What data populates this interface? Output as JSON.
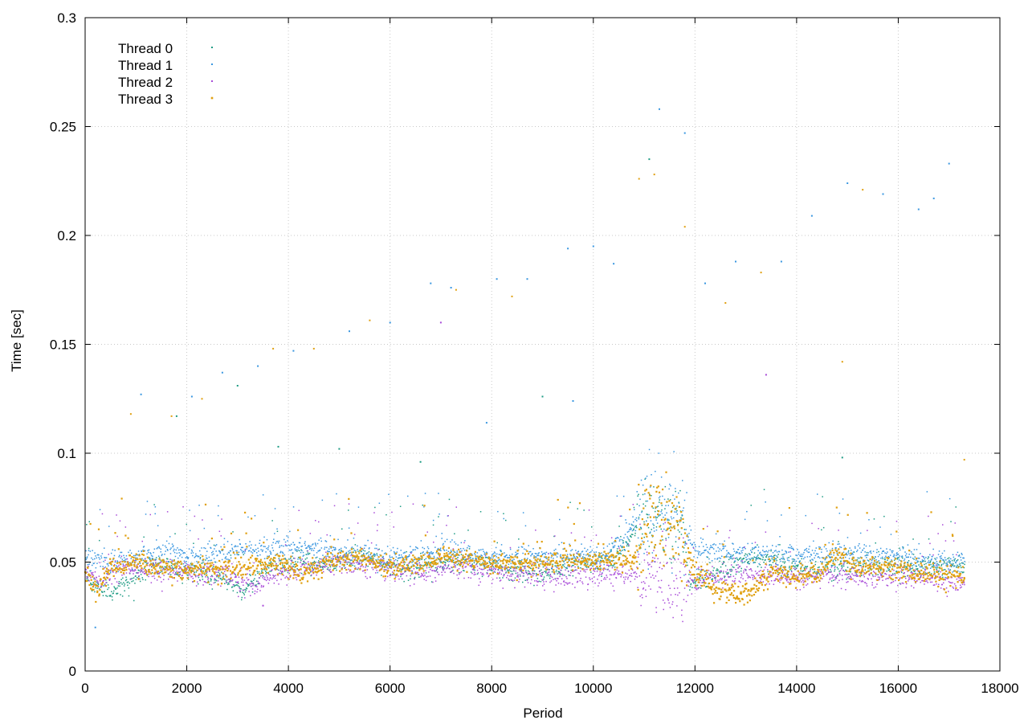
{
  "chart_data": {
    "type": "scatter",
    "title": "",
    "xlabel": "Period",
    "ylabel": "Time [sec]",
    "xlim": [
      0,
      18000
    ],
    "ylim": [
      0,
      0.3
    ],
    "xticks": [
      0,
      2000,
      4000,
      6000,
      8000,
      10000,
      12000,
      14000,
      16000,
      18000
    ],
    "yticks": [
      0,
      0.05,
      0.1,
      0.15,
      0.2,
      0.25,
      0.3
    ],
    "xtick_labels": [
      "0",
      "2000",
      "4000",
      "6000",
      "8000",
      "10000",
      "12000",
      "14000",
      "16000",
      "18000"
    ],
    "ytick_labels": [
      "0",
      "0.05",
      "0.1",
      "0.15",
      "0.2",
      "0.25",
      "0.3"
    ],
    "grid": true,
    "legend_position": "top-left",
    "n_periods": 17300,
    "series": [
      {
        "name": "Thread 0",
        "color": "#1f9c84",
        "marker": "dot",
        "baseline": [
          [
            0,
            0.045
          ],
          [
            200,
            0.039
          ],
          [
            600,
            0.037
          ],
          [
            1000,
            0.043
          ],
          [
            1400,
            0.049
          ],
          [
            2000,
            0.046
          ],
          [
            2600,
            0.044
          ],
          [
            3100,
            0.037
          ],
          [
            3600,
            0.048
          ],
          [
            4200,
            0.05
          ],
          [
            4800,
            0.049
          ],
          [
            5400,
            0.053
          ],
          [
            6000,
            0.047
          ],
          [
            6700,
            0.048
          ],
          [
            7500,
            0.051
          ],
          [
            8200,
            0.047
          ],
          [
            9000,
            0.045
          ],
          [
            9600,
            0.049
          ],
          [
            10400,
            0.051
          ],
          [
            11000,
            0.07
          ],
          [
            11700,
            0.07
          ],
          [
            11900,
            0.04
          ],
          [
            12500,
            0.046
          ],
          [
            13200,
            0.052
          ],
          [
            14000,
            0.047
          ],
          [
            14800,
            0.047
          ],
          [
            15600,
            0.048
          ],
          [
            16400,
            0.047
          ],
          [
            17300,
            0.049
          ]
        ],
        "outliers": [
          [
            1800,
            0.117
          ],
          [
            3000,
            0.131
          ],
          [
            3800,
            0.103
          ],
          [
            5000,
            0.102
          ],
          [
            6600,
            0.096
          ],
          [
            9000,
            0.126
          ],
          [
            11100,
            0.235
          ],
          [
            14900,
            0.098
          ]
        ]
      },
      {
        "name": "Thread 1",
        "color": "#3a97e0",
        "marker": "dot",
        "baseline": [
          [
            0,
            0.052
          ],
          [
            400,
            0.049
          ],
          [
            1000,
            0.052
          ],
          [
            1600,
            0.055
          ],
          [
            2200,
            0.052
          ],
          [
            2800,
            0.055
          ],
          [
            3400,
            0.056
          ],
          [
            4000,
            0.057
          ],
          [
            4600,
            0.056
          ],
          [
            5200,
            0.055
          ],
          [
            5800,
            0.052
          ],
          [
            6400,
            0.053
          ],
          [
            7000,
            0.055
          ],
          [
            7800,
            0.053
          ],
          [
            8600,
            0.052
          ],
          [
            9400,
            0.053
          ],
          [
            10200,
            0.052
          ],
          [
            11000,
            0.072
          ],
          [
            11700,
            0.072
          ],
          [
            12000,
            0.055
          ],
          [
            12800,
            0.054
          ],
          [
            13600,
            0.053
          ],
          [
            14400,
            0.054
          ],
          [
            15200,
            0.054
          ],
          [
            16000,
            0.052
          ],
          [
            16800,
            0.051
          ],
          [
            17300,
            0.051
          ]
        ],
        "outliers": [
          [
            200,
            0.02
          ],
          [
            1100,
            0.127
          ],
          [
            2100,
            0.126
          ],
          [
            2700,
            0.137
          ],
          [
            3400,
            0.14
          ],
          [
            4100,
            0.147
          ],
          [
            5200,
            0.156
          ],
          [
            6000,
            0.16
          ],
          [
            6800,
            0.178
          ],
          [
            7200,
            0.176
          ],
          [
            8100,
            0.18
          ],
          [
            8700,
            0.18
          ],
          [
            9500,
            0.194
          ],
          [
            10000,
            0.195
          ],
          [
            10400,
            0.187
          ],
          [
            11300,
            0.258
          ],
          [
            11800,
            0.247
          ],
          [
            12200,
            0.178
          ],
          [
            12800,
            0.188
          ],
          [
            13700,
            0.188
          ],
          [
            14300,
            0.209
          ],
          [
            15000,
            0.224
          ],
          [
            15700,
            0.219
          ],
          [
            16400,
            0.212
          ],
          [
            17000,
            0.233
          ],
          [
            16700,
            0.217
          ],
          [
            7900,
            0.114
          ],
          [
            9600,
            0.124
          ]
        ]
      },
      {
        "name": "Thread 2",
        "color": "#a84ad8",
        "marker": "dot",
        "baseline": [
          [
            0,
            0.045
          ],
          [
            300,
            0.041
          ],
          [
            700,
            0.047
          ],
          [
            1300,
            0.046
          ],
          [
            2000,
            0.045
          ],
          [
            2800,
            0.044
          ],
          [
            3300,
            0.038
          ],
          [
            3800,
            0.045
          ],
          [
            4400,
            0.047
          ],
          [
            5000,
            0.049
          ],
          [
            5600,
            0.048
          ],
          [
            6200,
            0.046
          ],
          [
            6800,
            0.045
          ],
          [
            7500,
            0.048
          ],
          [
            8300,
            0.045
          ],
          [
            9200,
            0.043
          ],
          [
            10000,
            0.044
          ],
          [
            10800,
            0.045
          ],
          [
            11300,
            0.044
          ],
          [
            11800,
            0.041
          ],
          [
            12400,
            0.043
          ],
          [
            13000,
            0.045
          ],
          [
            13800,
            0.043
          ],
          [
            14600,
            0.044
          ],
          [
            15400,
            0.043
          ],
          [
            16200,
            0.043
          ],
          [
            17300,
            0.04
          ]
        ],
        "outliers": [
          [
            3500,
            0.03
          ],
          [
            7000,
            0.16
          ],
          [
            13400,
            0.136
          ]
        ]
      },
      {
        "name": "Thread 3",
        "color": "#e0a010",
        "marker": "square",
        "baseline": [
          [
            0,
            0.045
          ],
          [
            200,
            0.037
          ],
          [
            500,
            0.048
          ],
          [
            1000,
            0.05
          ],
          [
            1500,
            0.048
          ],
          [
            2000,
            0.046
          ],
          [
            2600,
            0.047
          ],
          [
            3200,
            0.048
          ],
          [
            3800,
            0.05
          ],
          [
            4300,
            0.045
          ],
          [
            4800,
            0.05
          ],
          [
            5400,
            0.052
          ],
          [
            6000,
            0.047
          ],
          [
            6600,
            0.05
          ],
          [
            7200,
            0.053
          ],
          [
            7800,
            0.05
          ],
          [
            8400,
            0.049
          ],
          [
            9000,
            0.05
          ],
          [
            9600,
            0.051
          ],
          [
            10200,
            0.051
          ],
          [
            10800,
            0.052
          ],
          [
            11100,
            0.07
          ],
          [
            11700,
            0.066
          ],
          [
            12000,
            0.045
          ],
          [
            12400,
            0.037
          ],
          [
            12800,
            0.036
          ],
          [
            13100,
            0.035
          ],
          [
            13500,
            0.046
          ],
          [
            14000,
            0.043
          ],
          [
            14400,
            0.045
          ],
          [
            14800,
            0.053
          ],
          [
            15200,
            0.048
          ],
          [
            15800,
            0.047
          ],
          [
            16400,
            0.046
          ],
          [
            17000,
            0.044
          ],
          [
            17300,
            0.042
          ]
        ],
        "outliers": [
          [
            900,
            0.118
          ],
          [
            1700,
            0.117
          ],
          [
            2300,
            0.125
          ],
          [
            3700,
            0.148
          ],
          [
            4500,
            0.148
          ],
          [
            5600,
            0.161
          ],
          [
            7300,
            0.175
          ],
          [
            8400,
            0.172
          ],
          [
            10900,
            0.226
          ],
          [
            11200,
            0.228
          ],
          [
            11800,
            0.204
          ],
          [
            12600,
            0.169
          ],
          [
            13300,
            0.183
          ],
          [
            14900,
            0.142
          ],
          [
            15300,
            0.221
          ],
          [
            17300,
            0.097
          ]
        ]
      }
    ]
  }
}
